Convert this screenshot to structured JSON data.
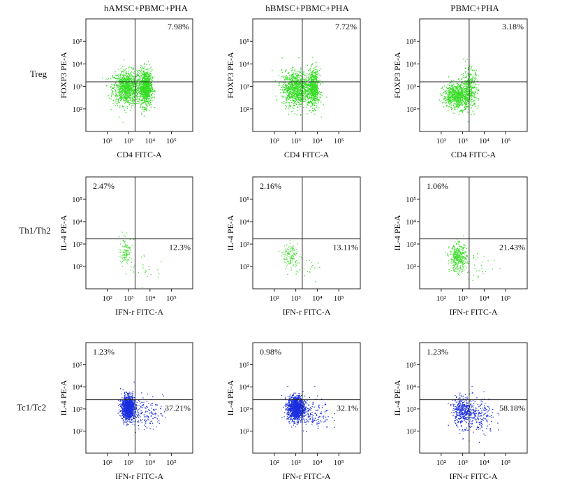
{
  "figure": {
    "columns": [
      "hAMSC+PBMC+PHA",
      "hBMSC+PBMC+PHA",
      "PBMC+PHA"
    ],
    "rows": [
      "Treg",
      "Th1/Th2",
      "Tc1/Tc2"
    ]
  },
  "chart_data": {
    "type": "scatter",
    "x_scale": "log",
    "y_scale": "log",
    "axis_range": [
      10,
      1000000
    ],
    "tick_labels": [
      "10²",
      "10³",
      "10⁴",
      "10⁵"
    ],
    "tick_values": [
      100,
      1000,
      10000,
      100000
    ],
    "rows": [
      {
        "label": "Treg",
        "xlabel": "CD4 FITC-A",
        "ylabel": "FOXP3 PE-A",
        "color": "#33dd22",
        "gate": [
          2000,
          1600
        ],
        "quadrant_labels": [
          "upper-right"
        ],
        "panels": [
          {
            "title": "hAMSC+PBMC+PHA",
            "upper_right": "7.98%",
            "clusters": [
              {
                "cx": 800,
                "cy": 900,
                "sx": 0.33,
                "sy": 0.38,
                "n": 950
              },
              {
                "cx": 6000,
                "cy": 900,
                "sx": 0.15,
                "sy": 0.4,
                "n": 850
              }
            ]
          },
          {
            "title": "hBMSC+PBMC+PHA",
            "upper_right": "7.72%",
            "clusters": [
              {
                "cx": 1000,
                "cy": 850,
                "sx": 0.33,
                "sy": 0.38,
                "n": 950
              },
              {
                "cx": 6500,
                "cy": 850,
                "sx": 0.14,
                "sy": 0.42,
                "n": 600
              }
            ]
          },
          {
            "title": "PBMC+PHA",
            "upper_right": "3.18%",
            "clusters": [
              {
                "cx": 550,
                "cy": 400,
                "sx": 0.33,
                "sy": 0.28,
                "n": 750
              },
              {
                "cx": 2000,
                "cy": 900,
                "sx": 0.2,
                "sy": 0.45,
                "n": 280
              }
            ]
          }
        ]
      },
      {
        "label": "Th1/Th2",
        "xlabel": "IFN-r FITC-A",
        "ylabel": "IL-4 PE-A",
        "color": "#44dd33",
        "gate": [
          2000,
          1700
        ],
        "quadrant_labels": [
          "upper-left",
          "lower-right"
        ],
        "panels": [
          {
            "title": "hAMSC+PBMC+PHA",
            "upper_left": "2.47%",
            "lower_right": "12.3%",
            "clusters": [
              {
                "cx": 700,
                "cy": 500,
                "sx": 0.15,
                "sy": 0.3,
                "n": 110
              },
              {
                "cx": 6000,
                "cy": 100,
                "sx": 0.4,
                "sy": 0.4,
                "n": 25
              }
            ]
          },
          {
            "title": "hBMSC+PBMC+PHA",
            "upper_left": "2.16%",
            "lower_right": "13.11%",
            "clusters": [
              {
                "cx": 550,
                "cy": 280,
                "sx": 0.18,
                "sy": 0.28,
                "n": 120
              },
              {
                "cx": 4000,
                "cy": 80,
                "sx": 0.4,
                "sy": 0.3,
                "n": 20
              }
            ]
          },
          {
            "title": "PBMC+PHA",
            "upper_left": "1.06%",
            "lower_right": "21.43%",
            "clusters": [
              {
                "cx": 600,
                "cy": 250,
                "sx": 0.2,
                "sy": 0.3,
                "n": 380
              },
              {
                "cx": 5000,
                "cy": 110,
                "sx": 0.45,
                "sy": 0.35,
                "n": 30
              }
            ]
          }
        ]
      },
      {
        "label": "Tc1/Tc2",
        "xlabel": "IFN-r FITC-A",
        "ylabel": "IL-4 PE-A",
        "color": "#1a2fe0",
        "gate": [
          2000,
          2600
        ],
        "quadrant_labels": [
          "upper-left",
          "lower-right"
        ],
        "panels": [
          {
            "title": "hAMSC+PBMC+PHA",
            "upper_left": "1.23%",
            "lower_right": "37.21%",
            "clusters": [
              {
                "cx": 900,
                "cy": 1200,
                "sx": 0.15,
                "sy": 0.27,
                "n": 1100
              },
              {
                "cx": 5000,
                "cy": 700,
                "sx": 0.45,
                "sy": 0.35,
                "n": 170
              }
            ]
          },
          {
            "title": "hBMSC+PBMC+PHA",
            "upper_left": "0.98%",
            "lower_right": "32.1%",
            "clusters": [
              {
                "cx": 1000,
                "cy": 1100,
                "sx": 0.2,
                "sy": 0.28,
                "n": 1150
              },
              {
                "cx": 5000,
                "cy": 600,
                "sx": 0.45,
                "sy": 0.35,
                "n": 150
              }
            ]
          },
          {
            "title": "PBMC+PHA",
            "upper_left": "1.23%",
            "lower_right": "58.18%",
            "clusters": [
              {
                "cx": 900,
                "cy": 1000,
                "sx": 0.22,
                "sy": 0.3,
                "n": 300
              },
              {
                "cx": 4000,
                "cy": 450,
                "sx": 0.45,
                "sy": 0.42,
                "n": 260
              }
            ]
          }
        ]
      }
    ]
  }
}
